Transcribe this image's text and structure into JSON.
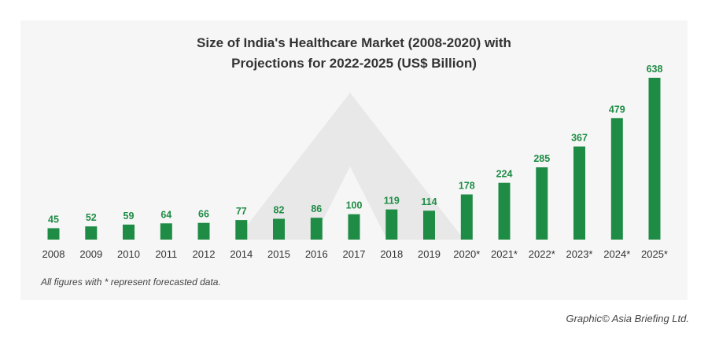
{
  "chart_data": {
    "type": "bar",
    "title_line1": "Size of India's Healthcare Market (2008-2020) with",
    "title_line2": "Projections for 2022-2025 (US$ Billion)",
    "categories": [
      "2008",
      "2009",
      "2010",
      "2011",
      "2012",
      "2014",
      "2015",
      "2016",
      "2017",
      "2018",
      "2019",
      "2020*",
      "2021*",
      "2022*",
      "2023*",
      "2024*",
      "2025*"
    ],
    "values": [
      45,
      52,
      59,
      64,
      66,
      77,
      82,
      86,
      100,
      119,
      114,
      178,
      224,
      285,
      367,
      479,
      638
    ],
    "xlabel": "",
    "ylabel": "",
    "ylim": [
      0,
      638
    ],
    "grid": false,
    "legend": "none",
    "bar_color": "#1e8c45",
    "label_color": "#1e8c45"
  },
  "footnote": "All figures with * represent forecasted data.",
  "credit": "Graphic© Asia Briefing Ltd."
}
